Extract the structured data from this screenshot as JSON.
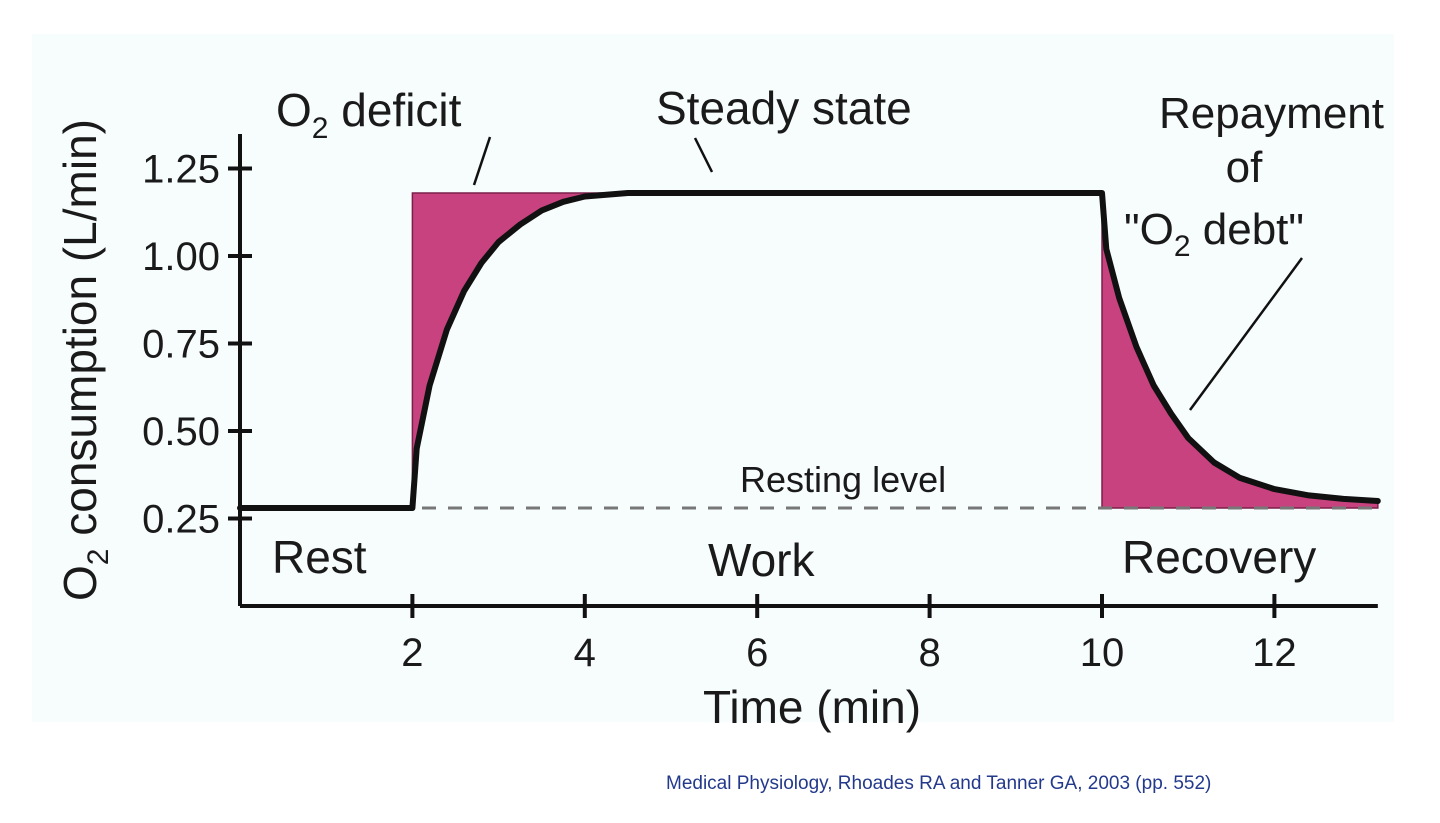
{
  "chart_data": {
    "type": "line",
    "xlabel": "Time (min)",
    "ylabel": "O2 consumption (L/min)",
    "ylabel_parts": {
      "lead": "O",
      "sub": "2",
      "rest": " consumption (L/min)"
    },
    "x_ticks": [
      2,
      4,
      6,
      8,
      10,
      12
    ],
    "y_ticks": [
      "0.25",
      "0.50",
      "0.75",
      "1.00",
      "1.25"
    ],
    "xlim": [
      0,
      13.2
    ],
    "ylim": [
      0,
      1.32
    ],
    "grid": false,
    "resting_level": 0.28,
    "steady_level": 1.18,
    "series": [
      {
        "role": "consumption",
        "x": [
          0,
          2,
          2.05,
          2.2,
          2.4,
          2.6,
          2.8,
          3.0,
          3.25,
          3.5,
          3.75,
          4.0,
          4.5,
          5,
          6,
          8,
          10,
          10.05,
          10.2,
          10.4,
          10.6,
          10.8,
          11.0,
          11.3,
          11.6,
          12.0,
          12.4,
          12.8,
          13.2
        ],
        "y": [
          0.28,
          0.28,
          0.45,
          0.63,
          0.79,
          0.9,
          0.98,
          1.04,
          1.09,
          1.13,
          1.155,
          1.17,
          1.18,
          1.18,
          1.18,
          1.18,
          1.18,
          1.02,
          0.88,
          0.74,
          0.63,
          0.55,
          0.48,
          0.41,
          0.366,
          0.334,
          0.316,
          0.306,
          0.3
        ]
      }
    ],
    "annotations": {
      "deficit": {
        "lead": "O",
        "sub": "2",
        "rest": " deficit"
      },
      "steady": "Steady state",
      "repay_line1": "Repayment",
      "repay_line2": "of",
      "repay_line3": {
        "lead": "\"O",
        "sub": "2",
        "rest": " debt\""
      },
      "resting": "Resting level",
      "rest": "Rest",
      "work": "Work",
      "recovery": "Recovery"
    },
    "colors": {
      "line": "#111111",
      "deficit_fill": "#c8427f",
      "dashed": "#777777",
      "axis": "#111111"
    }
  },
  "citation": "Medical Physiology, Rhoades RA and Tanner GA, 2003 (pp. 552)"
}
